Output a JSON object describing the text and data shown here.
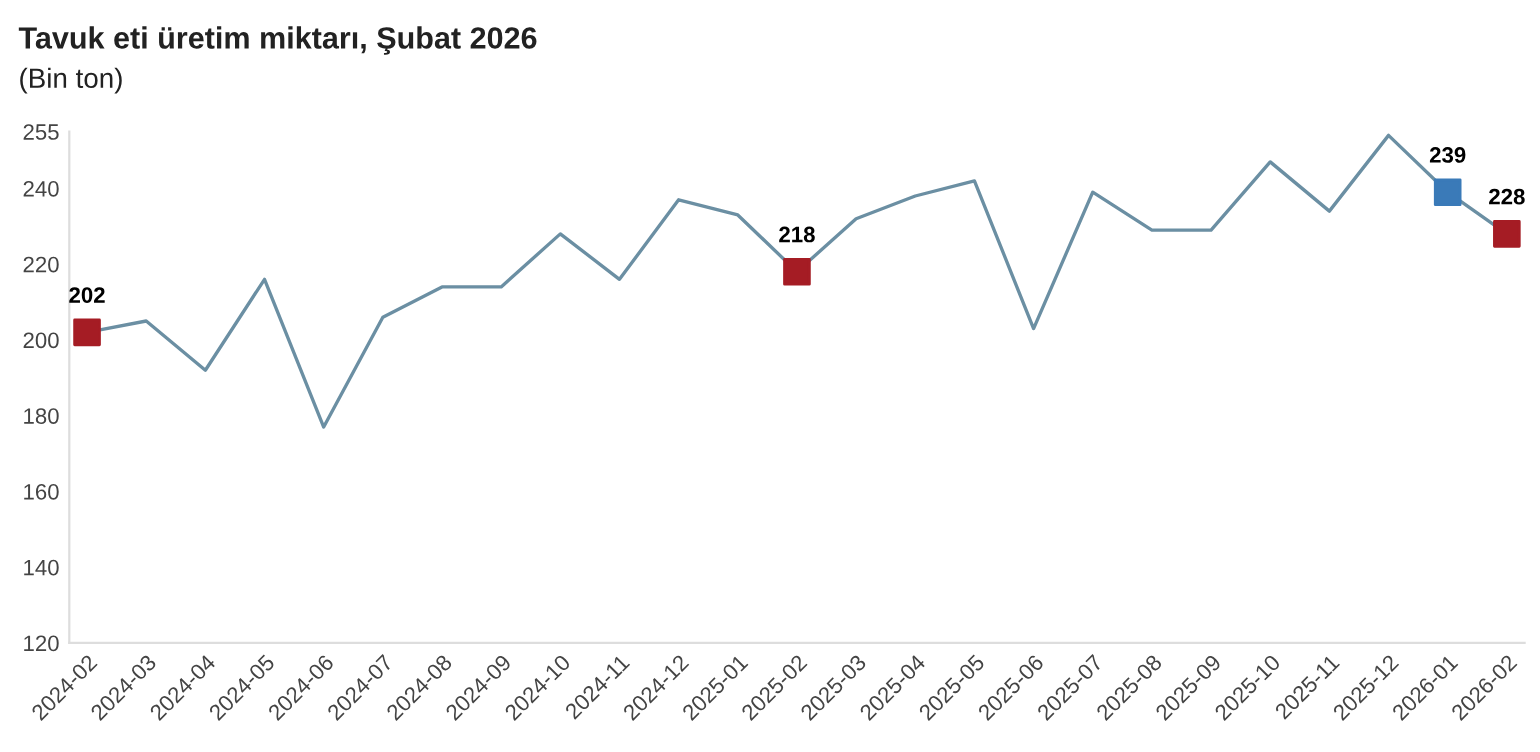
{
  "chart_data": {
    "type": "line",
    "title": "Tavuk eti üretim miktarı, Şubat 2026",
    "subtitle": "(Bin ton)",
    "categories": [
      "2024-02",
      "2024-03",
      "2024-04",
      "2024-05",
      "2024-06",
      "2024-07",
      "2024-08",
      "2024-09",
      "2024-10",
      "2024-11",
      "2024-12",
      "2025-01",
      "2025-02",
      "2025-03",
      "2025-04",
      "2025-05",
      "2025-06",
      "2025-07",
      "2025-08",
      "2025-09",
      "2025-10",
      "2025-11",
      "2025-12",
      "2026-01",
      "2026-02"
    ],
    "series": [
      {
        "color": "#6b8fa3",
        "values": [
          202,
          205,
          192,
          216,
          177,
          206,
          214,
          214,
          228,
          216,
          237,
          233,
          218,
          232,
          238,
          242,
          203,
          239,
          229,
          229,
          247,
          234,
          254,
          239,
          228
        ]
      },
      {
        "type": "scatter",
        "marker": "square",
        "values": [
          202,
          null,
          null,
          null,
          null,
          null,
          null,
          null,
          null,
          null,
          null,
          null,
          218,
          null,
          null,
          null,
          null,
          null,
          null,
          null,
          null,
          null,
          null,
          239,
          228
        ],
        "colors": [
          "#a51c24",
          null,
          null,
          null,
          null,
          null,
          null,
          null,
          null,
          null,
          null,
          null,
          "#a51c24",
          null,
          null,
          null,
          null,
          null,
          null,
          null,
          null,
          null,
          null,
          "#3a7ab8",
          "#a51c24"
        ],
        "value_labels": [
          "202",
          null,
          null,
          null,
          null,
          null,
          null,
          null,
          null,
          null,
          null,
          null,
          "218",
          null,
          null,
          null,
          null,
          null,
          null,
          null,
          null,
          null,
          null,
          "239",
          "228"
        ]
      }
    ],
    "ylim": [
      120,
      255
    ],
    "yticks": [
      120,
      140,
      160,
      180,
      200,
      220,
      240,
      255
    ],
    "grid": false,
    "legend": false
  }
}
